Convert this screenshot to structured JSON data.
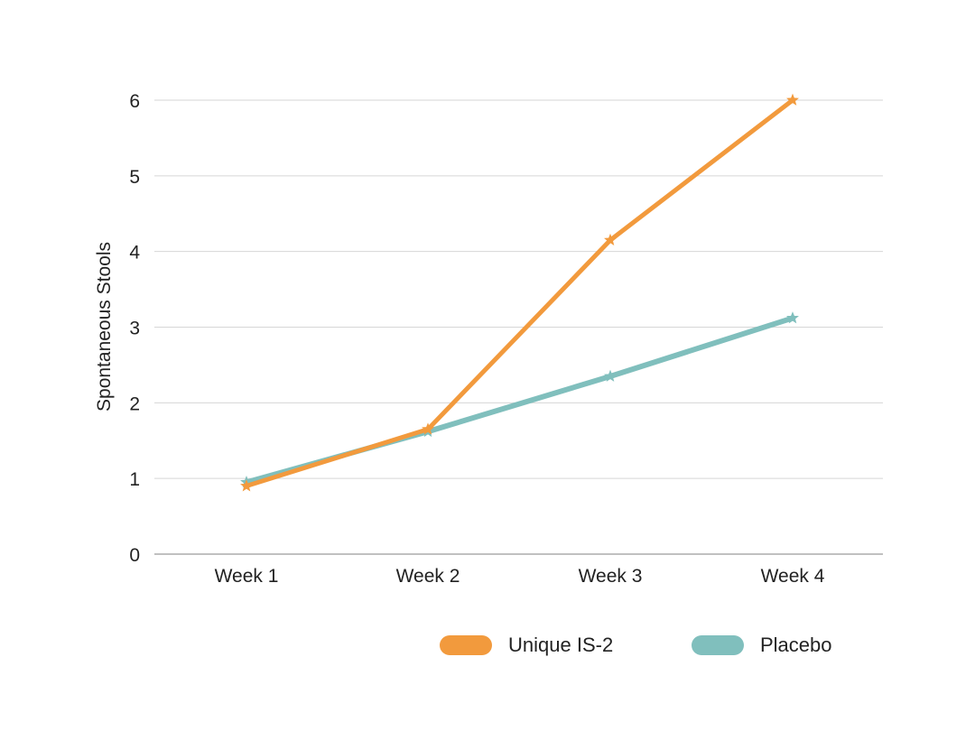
{
  "chart_data": {
    "type": "line",
    "title": "",
    "xlabel": "",
    "ylabel": "Spontaneous Stools",
    "categories": [
      "Week 1",
      "Week 2",
      "Week 3",
      "Week 4"
    ],
    "ylim": [
      0,
      6
    ],
    "yticks": [
      "0",
      "1",
      "2",
      "3",
      "4",
      "5",
      "6"
    ],
    "grid": true,
    "legend_position": "bottom-right",
    "series": [
      {
        "name": "Unique IS-2",
        "color": "#F29A3D",
        "values": [
          0.9,
          1.65,
          4.15,
          6.0
        ]
      },
      {
        "name": "Placebo",
        "color": "#80BFBD",
        "values": [
          0.95,
          1.62,
          2.35,
          3.12
        ]
      }
    ]
  }
}
